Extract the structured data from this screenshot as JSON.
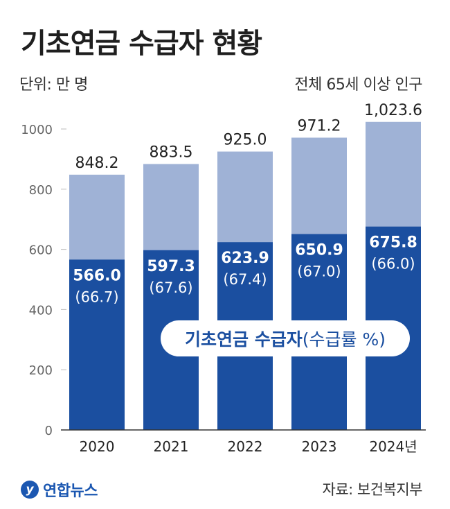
{
  "title": "기초연금 수급자 현황",
  "unit_label": "단위: 만 명",
  "total_series_label": "전체 65세 이상 인구",
  "recipients_label": "기초연금 수급자",
  "rate_label": "(수급률 %)",
  "logo_text": "연합뉴스",
  "source": "자료: 보건복지부",
  "colors": {
    "total": "#9fb2d6",
    "recipients": "#1b4fa0",
    "text": "#222222"
  },
  "chart_data": {
    "type": "bar",
    "categories": [
      "2020",
      "2021",
      "2022",
      "2023",
      "2024년"
    ],
    "series": [
      {
        "name": "전체 65세 이상 인구",
        "values": [
          848.2,
          883.5,
          925.0,
          971.2,
          1023.6
        ],
        "labels": [
          "848.2",
          "883.5",
          "925.0",
          "971.2",
          "1,023.6"
        ]
      },
      {
        "name": "기초연금 수급자",
        "values": [
          566.0,
          597.3,
          623.9,
          650.9,
          675.8
        ],
        "labels": [
          "566.0",
          "597.3",
          "623.9",
          "650.9",
          "675.8"
        ]
      }
    ],
    "rates": [
      "(66.7)",
      "(67.6)",
      "(67.4)",
      "(67.0)",
      "(66.0)"
    ],
    "y_ticks": [
      0,
      200,
      400,
      600,
      800,
      1000
    ],
    "ylim": [
      0,
      1000
    ]
  }
}
